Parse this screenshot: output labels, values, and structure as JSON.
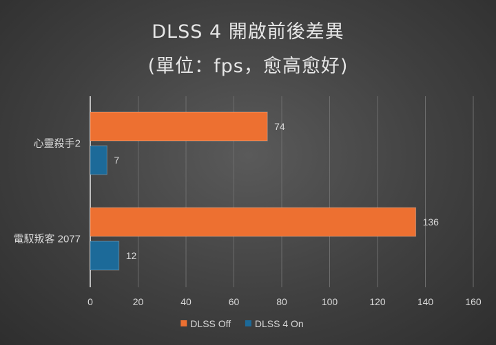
{
  "chart_data": {
    "type": "bar",
    "orientation": "horizontal",
    "title": "DLSS 4 開啟前後差異",
    "subtitle": "(單位：fps，愈高愈好)",
    "categories": [
      "心靈殺手2",
      "電馭叛客 2077"
    ],
    "series": [
      {
        "name": "DLSS Off",
        "values": [
          74,
          136
        ],
        "color": "#ed7031"
      },
      {
        "name": "DLSS 4 On",
        "values": [
          7,
          12
        ],
        "color": "#1c6a99"
      }
    ],
    "xlim": [
      0,
      160
    ],
    "xticks": [
      0,
      20,
      40,
      60,
      80,
      100,
      120,
      140,
      160
    ],
    "grid": true,
    "legend_position": "bottom",
    "data_labels": true
  }
}
